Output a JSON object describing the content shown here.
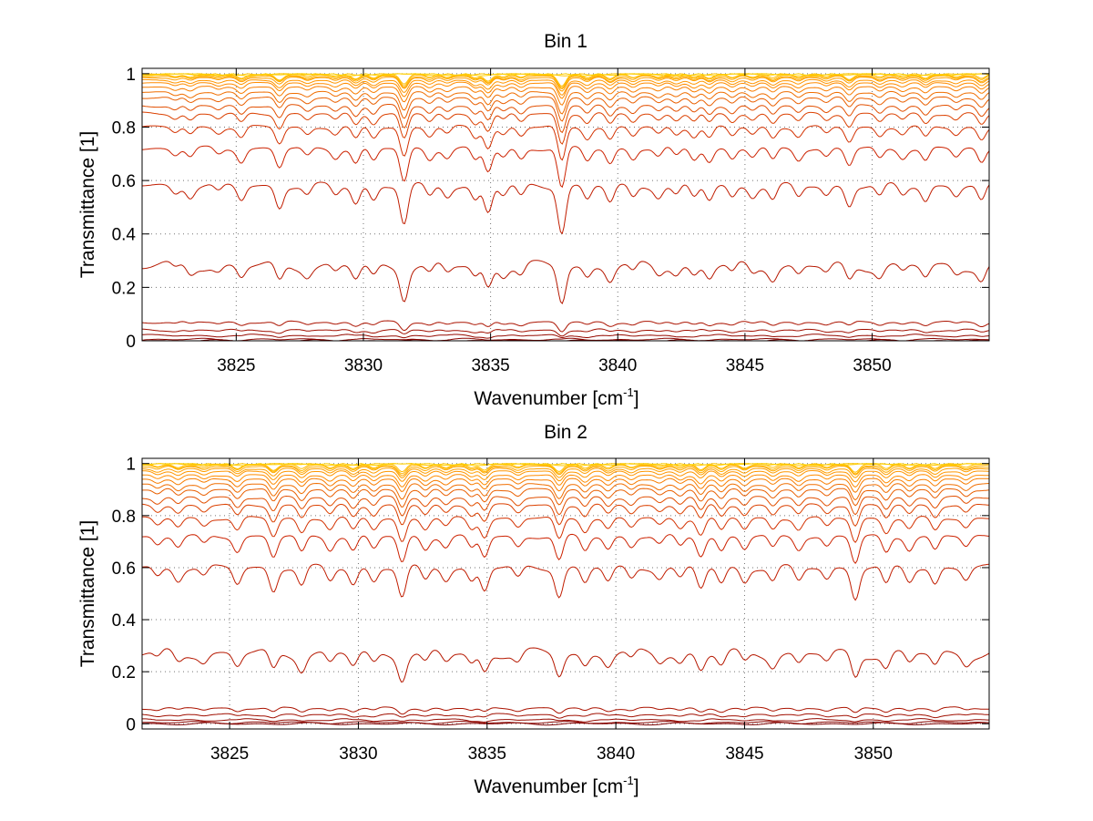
{
  "chart_data": [
    {
      "type": "line",
      "title": "Bin 1",
      "xlabel_base": "Wavenumber [cm",
      "xlabel_sup": "-1",
      "xlabel_end": "]",
      "ylabel": "Transmittance [1]",
      "xlim": [
        3821.3,
        3854.6
      ],
      "ylim": [
        0,
        1.02
      ],
      "xticks": [
        3825,
        3830,
        3835,
        3840,
        3845,
        3850
      ],
      "yticks": [
        0,
        0.2,
        0.4,
        0.6,
        0.8,
        1
      ],
      "ytick_labels": [
        "0",
        "0.2",
        "0.4",
        "0.6",
        "0.8",
        "1"
      ],
      "grid": true,
      "series_count": 22,
      "series_baselines": [
        0.0,
        0.005,
        0.02,
        0.04,
        0.07,
        0.28,
        0.58,
        0.72,
        0.8,
        0.85,
        0.88,
        0.91,
        0.93,
        0.95,
        0.965,
        0.975,
        0.985,
        0.99,
        0.994,
        0.997,
        0.999,
        1.0
      ],
      "absorption_lines": [
        {
          "x": 3822.6,
          "depth": 0.15
        },
        {
          "x": 3823.2,
          "depth": 0.2
        },
        {
          "x": 3824.3,
          "depth": 0.15
        },
        {
          "x": 3825.2,
          "depth": 0.3
        },
        {
          "x": 3826.7,
          "depth": 0.45
        },
        {
          "x": 3827.8,
          "depth": 0.2
        },
        {
          "x": 3828.9,
          "depth": 0.2
        },
        {
          "x": 3829.7,
          "depth": 0.35
        },
        {
          "x": 3830.4,
          "depth": 0.3
        },
        {
          "x": 3831.6,
          "depth": 0.8
        },
        {
          "x": 3832.6,
          "depth": 0.25
        },
        {
          "x": 3833.3,
          "depth": 0.2
        },
        {
          "x": 3834.4,
          "depth": 0.3
        },
        {
          "x": 3834.9,
          "depth": 0.55
        },
        {
          "x": 3835.5,
          "depth": 0.2
        },
        {
          "x": 3836.2,
          "depth": 0.25
        },
        {
          "x": 3837.8,
          "depth": 0.95
        },
        {
          "x": 3838.8,
          "depth": 0.3
        },
        {
          "x": 3839.7,
          "depth": 0.35
        },
        {
          "x": 3840.6,
          "depth": 0.25
        },
        {
          "x": 3841.6,
          "depth": 0.2
        },
        {
          "x": 3842.3,
          "depth": 0.2
        },
        {
          "x": 3843.0,
          "depth": 0.25
        },
        {
          "x": 3843.6,
          "depth": 0.3
        },
        {
          "x": 3844.5,
          "depth": 0.25
        },
        {
          "x": 3845.3,
          "depth": 0.2
        },
        {
          "x": 3846.1,
          "depth": 0.3
        },
        {
          "x": 3847.1,
          "depth": 0.25
        },
        {
          "x": 3848.2,
          "depth": 0.2
        },
        {
          "x": 3849.1,
          "depth": 0.4
        },
        {
          "x": 3850.3,
          "depth": 0.25
        },
        {
          "x": 3851.2,
          "depth": 0.2
        },
        {
          "x": 3852.1,
          "depth": 0.3
        },
        {
          "x": 3853.3,
          "depth": 0.2
        },
        {
          "x": 3854.3,
          "depth": 0.35
        }
      ]
    },
    {
      "type": "line",
      "title": "Bin 2",
      "xlabel_base": "Wavenumber [cm",
      "xlabel_sup": "-1",
      "xlabel_end": "]",
      "ylabel": "Transmittance [1]",
      "xlim": [
        3821.6,
        3854.5
      ],
      "ylim": [
        -0.02,
        1.02
      ],
      "xticks": [
        3825,
        3830,
        3835,
        3840,
        3845,
        3850
      ],
      "yticks": [
        0,
        0.2,
        0.4,
        0.6,
        0.8,
        1
      ],
      "ytick_labels": [
        "0",
        "0.2",
        "0.4",
        "0.6",
        "0.8",
        "1"
      ],
      "grid": true,
      "series_count": 22,
      "series_baselines": [
        0.0,
        0.005,
        0.015,
        0.035,
        0.06,
        0.27,
        0.6,
        0.72,
        0.79,
        0.84,
        0.87,
        0.9,
        0.92,
        0.94,
        0.955,
        0.97,
        0.98,
        0.988,
        0.993,
        0.997,
        0.999,
        1.0
      ],
      "absorption_lines": [
        {
          "x": 3822.2,
          "depth": 0.2
        },
        {
          "x": 3823.0,
          "depth": 0.25
        },
        {
          "x": 3824.0,
          "depth": 0.2
        },
        {
          "x": 3825.3,
          "depth": 0.35
        },
        {
          "x": 3826.7,
          "depth": 0.5
        },
        {
          "x": 3827.8,
          "depth": 0.4
        },
        {
          "x": 3828.9,
          "depth": 0.3
        },
        {
          "x": 3829.8,
          "depth": 0.35
        },
        {
          "x": 3830.6,
          "depth": 0.3
        },
        {
          "x": 3831.7,
          "depth": 0.65
        },
        {
          "x": 3832.6,
          "depth": 0.3
        },
        {
          "x": 3833.4,
          "depth": 0.25
        },
        {
          "x": 3834.4,
          "depth": 0.3
        },
        {
          "x": 3834.9,
          "depth": 0.5
        },
        {
          "x": 3836.2,
          "depth": 0.25
        },
        {
          "x": 3837.8,
          "depth": 0.6
        },
        {
          "x": 3838.8,
          "depth": 0.35
        },
        {
          "x": 3839.7,
          "depth": 0.3
        },
        {
          "x": 3840.6,
          "depth": 0.25
        },
        {
          "x": 3841.7,
          "depth": 0.2
        },
        {
          "x": 3842.5,
          "depth": 0.25
        },
        {
          "x": 3843.3,
          "depth": 0.45
        },
        {
          "x": 3844.1,
          "depth": 0.35
        },
        {
          "x": 3845.0,
          "depth": 0.3
        },
        {
          "x": 3846.1,
          "depth": 0.3
        },
        {
          "x": 3847.1,
          "depth": 0.3
        },
        {
          "x": 3848.2,
          "depth": 0.25
        },
        {
          "x": 3849.3,
          "depth": 0.65
        },
        {
          "x": 3850.5,
          "depth": 0.4
        },
        {
          "x": 3851.4,
          "depth": 0.3
        },
        {
          "x": 3852.4,
          "depth": 0.35
        },
        {
          "x": 3853.6,
          "depth": 0.25
        }
      ]
    }
  ],
  "colors": {
    "series_dark": "#7f0000",
    "series_mid": "#cc2200",
    "series_light": "#ff8c00",
    "series_top": "#ffd000",
    "axes": "#000000",
    "background": "#ffffff"
  }
}
